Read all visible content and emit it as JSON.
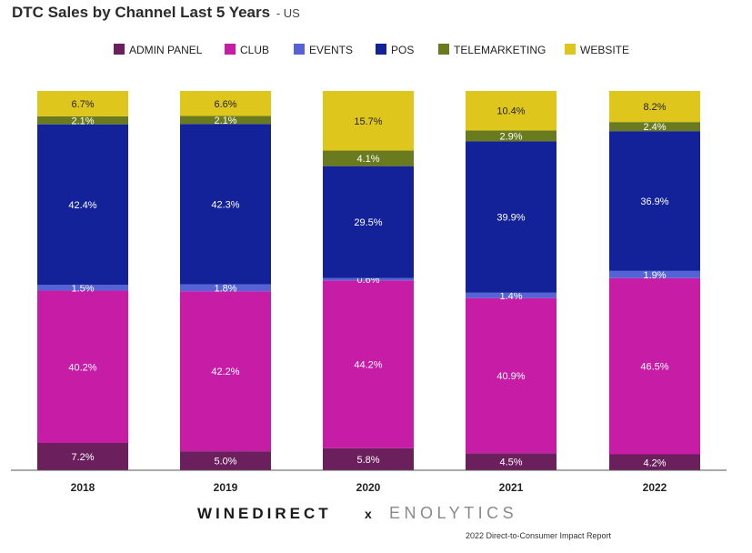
{
  "chart_data": {
    "type": "bar",
    "stacked": true,
    "title": "DTC Sales by Channel Last 5 Years",
    "subtitle": "- US",
    "categories": [
      "2018",
      "2019",
      "2020",
      "2021",
      "2022"
    ],
    "legend_position": "top",
    "ylim": [
      0,
      100
    ],
    "grid": false,
    "series": [
      {
        "name": "ADMIN PANEL",
        "color": "#6b1f5c",
        "values": [
          7.2,
          5.0,
          5.8,
          4.5,
          4.2
        ]
      },
      {
        "name": "CLUB",
        "color": "#c61ca6",
        "values": [
          40.2,
          42.2,
          44.2,
          40.9,
          46.5
        ]
      },
      {
        "name": "EVENTS",
        "color": "#5663d6",
        "values": [
          1.5,
          1.8,
          0.6,
          1.4,
          1.9
        ]
      },
      {
        "name": "POS",
        "color": "#14229a",
        "values": [
          42.4,
          42.3,
          29.5,
          39.9,
          36.9
        ]
      },
      {
        "name": "TELEMARKETING",
        "color": "#697a1f",
        "values": [
          2.1,
          2.1,
          4.1,
          2.9,
          2.4
        ]
      },
      {
        "name": "WEBSITE",
        "color": "#dfc61d",
        "values": [
          6.7,
          6.6,
          15.7,
          10.4,
          8.2
        ]
      }
    ],
    "value_labels": [
      [
        "7.2%",
        "5.0%",
        "5.8%",
        "4.5%",
        "4.2%"
      ],
      [
        "40.2%",
        "42.2%",
        "44.2%",
        "40.9%",
        "46.5%"
      ],
      [
        "1.5%",
        "1.8%",
        "0.6%",
        "1.4%",
        "1.9%"
      ],
      [
        "42.4%",
        "42.3%",
        "29.5%",
        "39.9%",
        "36.9%"
      ],
      [
        "2.1%",
        "2.1%",
        "4.1%",
        "2.9%",
        "2.4%"
      ],
      [
        "6.7%",
        "6.6%",
        "15.7%",
        "10.4%",
        "8.2%"
      ]
    ]
  },
  "branding": {
    "winedirect": "WINEDIRECT",
    "separator": "x",
    "enolytics": "ENOLYTICS",
    "report": "2022 Direct-to-Consumer Impact Report"
  }
}
